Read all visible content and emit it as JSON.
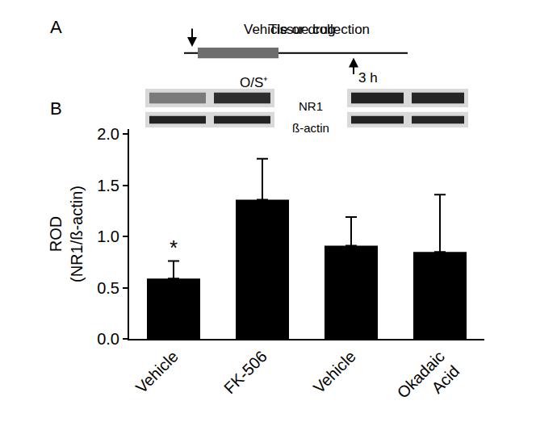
{
  "chart_data": {
    "type": "bar",
    "panel_labels": [
      "A",
      "B"
    ],
    "timeline": {
      "treatment": "Vehicle or drug",
      "exposure": "O/S⁺",
      "collection": "Tissue collection",
      "time": "3 h"
    },
    "blot_labels": [
      "NR1",
      "ß-actin"
    ],
    "categories": [
      "Vehicle",
      "FK-506",
      "Vehicle",
      "Okadaic\nAcid"
    ],
    "values": [
      0.59,
      1.36,
      0.91,
      0.85
    ],
    "errors": [
      0.17,
      0.4,
      0.28,
      0.56
    ],
    "color": "#000000",
    "y_label": "ROD\n(NR1/ß-actin)",
    "ylim": [
      0,
      2.05
    ],
    "yticks": [
      {
        "value": 0,
        "label": "0.0"
      },
      {
        "value": 0.5,
        "label": "0.5"
      },
      {
        "value": 1,
        "label": "1.0"
      },
      {
        "value": 1.5,
        "label": "1.5"
      },
      {
        "value": 2,
        "label": "2.0"
      }
    ],
    "annotations": [
      {
        "text": "*",
        "index": 0
      }
    ],
    "grid": false
  }
}
